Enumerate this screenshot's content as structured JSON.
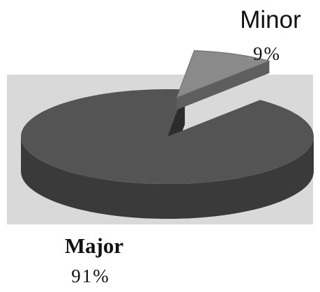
{
  "chart_data": {
    "type": "pie",
    "style": "3d",
    "slices": [
      {
        "label": "Major",
        "value": 91,
        "value_label": "91%"
      },
      {
        "label": "Minor",
        "value": 9,
        "value_label": "9%"
      }
    ]
  },
  "colors": {
    "background_panel": "#d9d9d9",
    "major_top": "#545454",
    "major_side": "#3a3a3a",
    "minor_top": "#8a8a8a",
    "minor_side": "#5e5e5e"
  }
}
